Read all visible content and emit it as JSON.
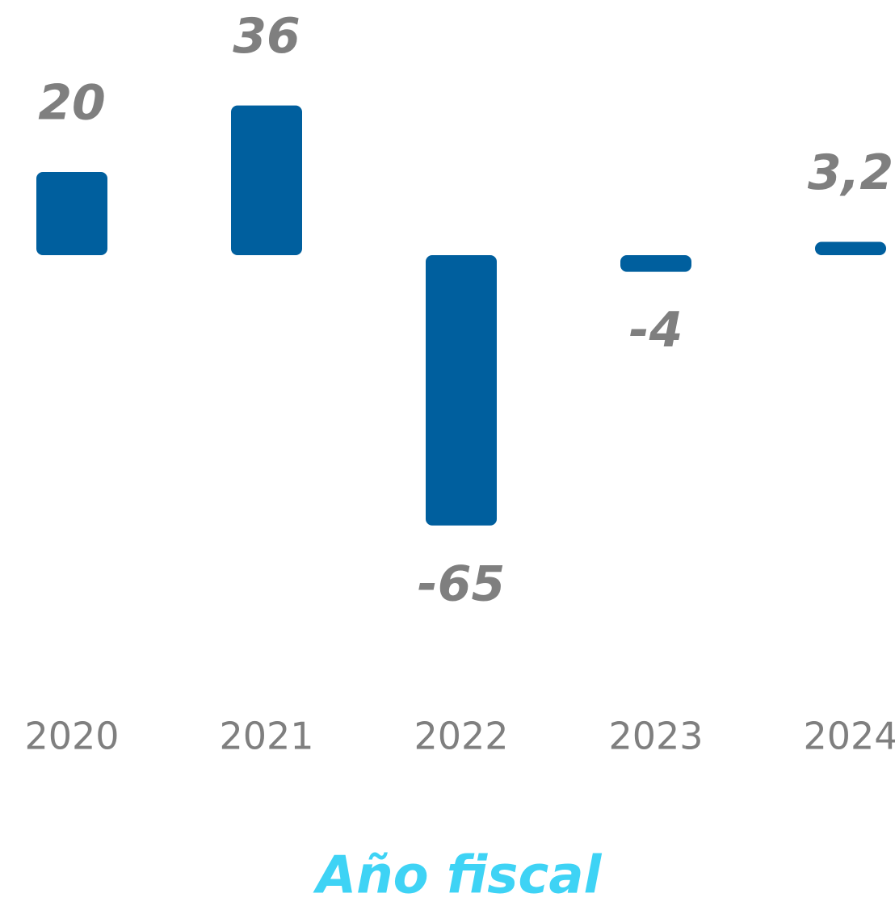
{
  "chart_data": {
    "type": "bar",
    "x_label": "Año fiscal",
    "categories": [
      "2020",
      "2021",
      "2022",
      "2023",
      "2024"
    ],
    "values": [
      20,
      36,
      -65,
      -4,
      3.2
    ],
    "value_labels": [
      "20",
      "36",
      "-65",
      "-4",
      "3,2"
    ],
    "color": "#005f9e"
  }
}
